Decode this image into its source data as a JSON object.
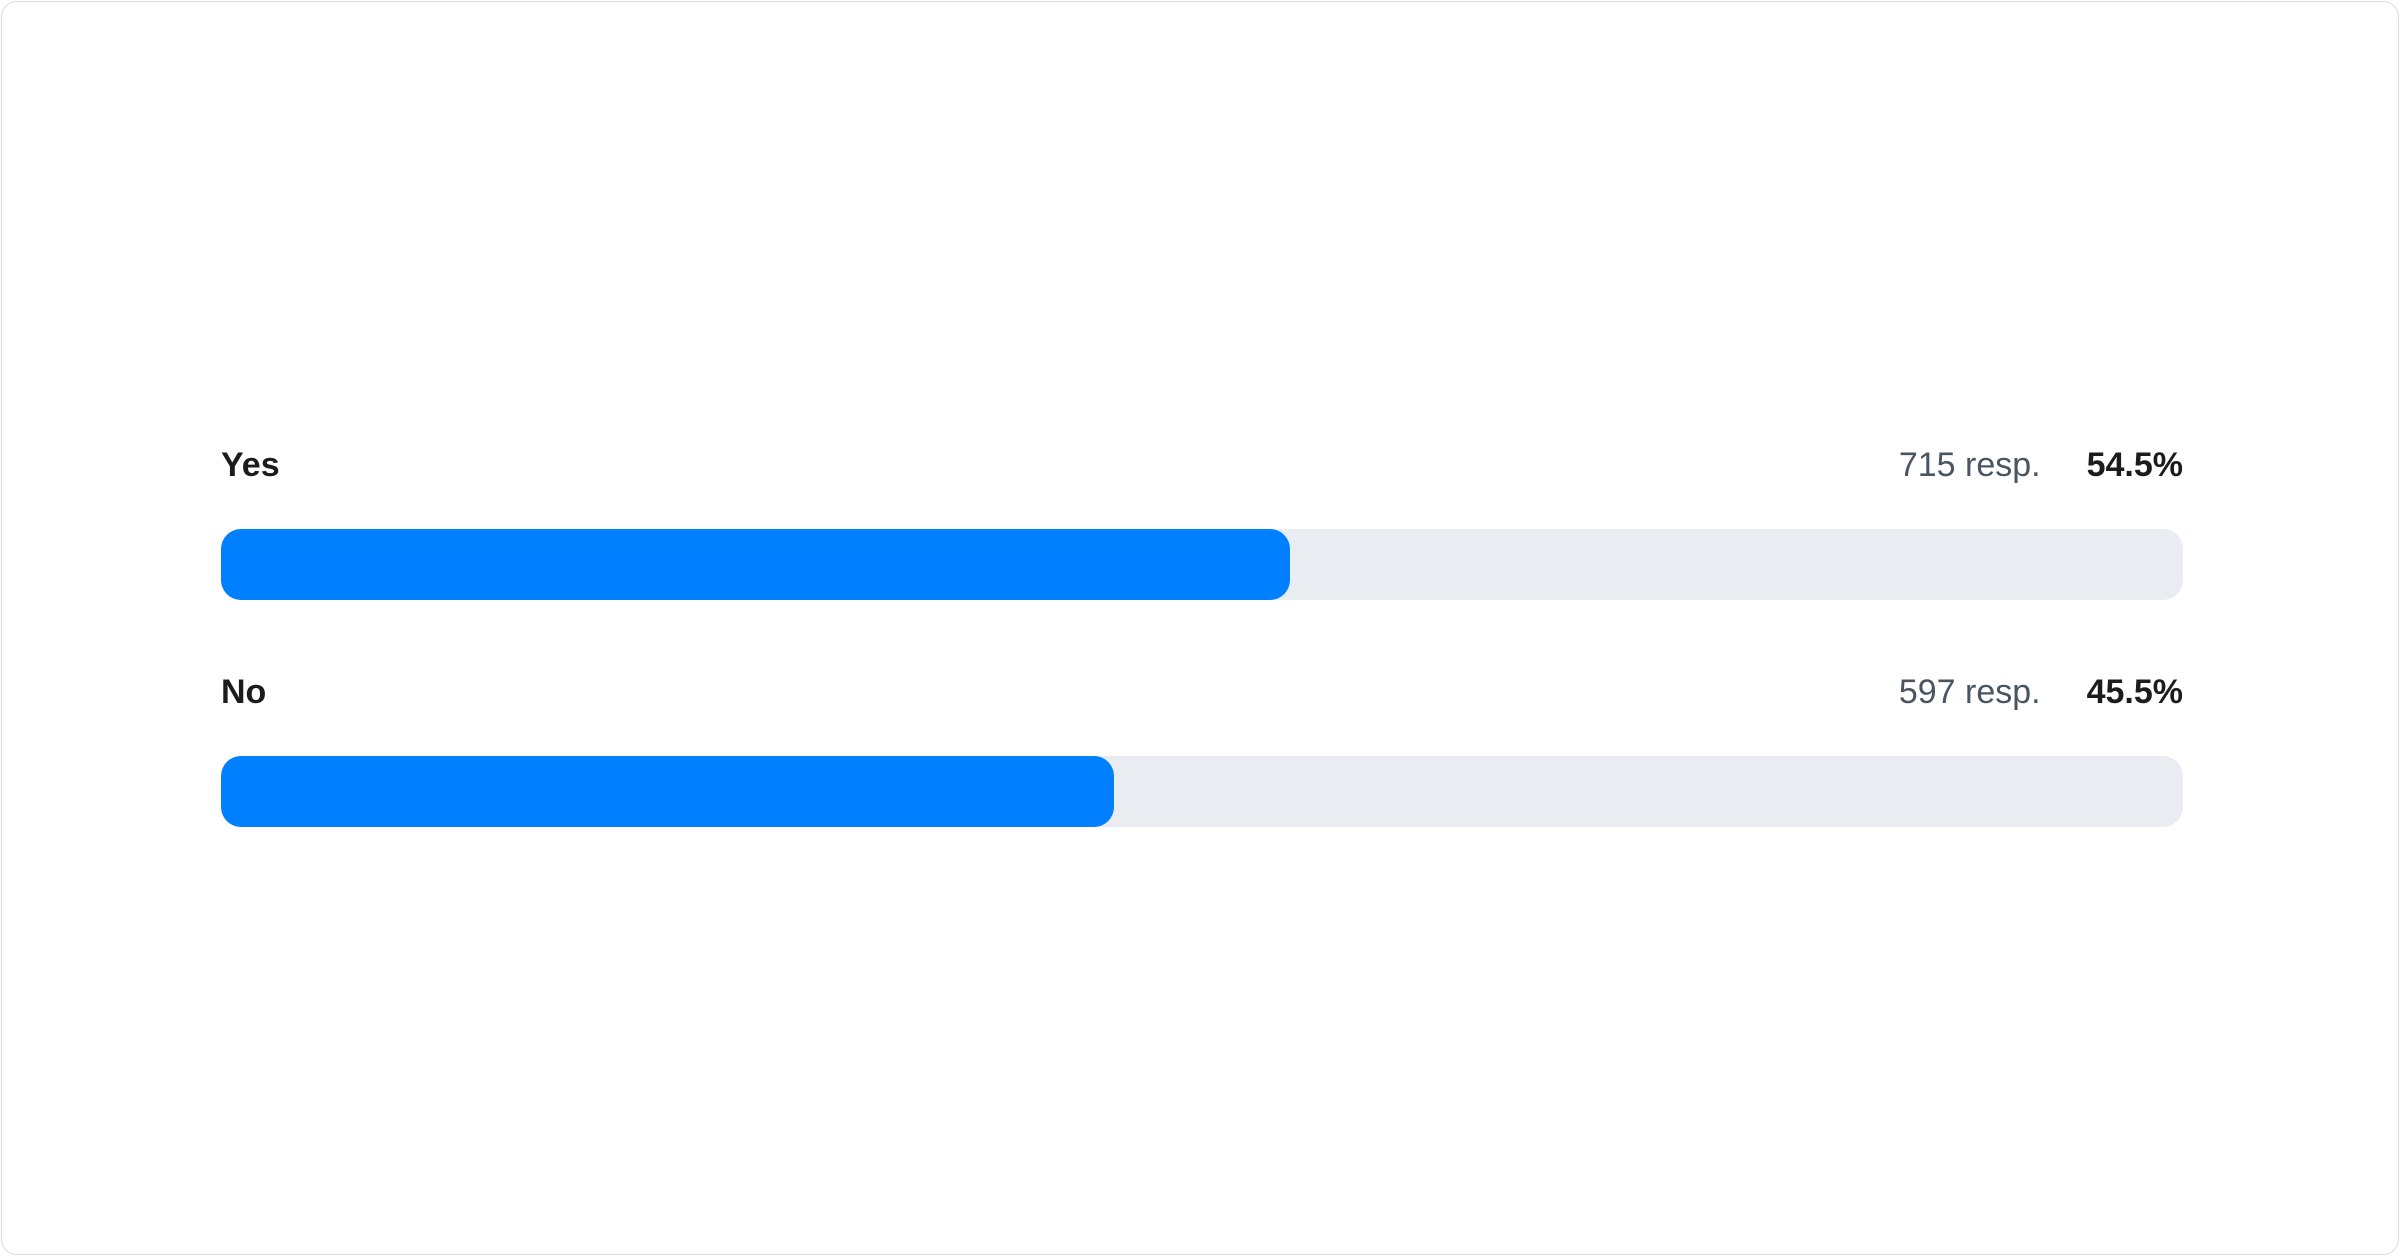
{
  "chart_data": {
    "type": "bar",
    "orientation": "horizontal",
    "categories": [
      "Yes",
      "No"
    ],
    "values": [
      54.5,
      45.5
    ],
    "responses": [
      "715 resp.",
      "597 resp."
    ],
    "percent_labels": [
      "54.5%",
      "45.5%"
    ],
    "xlim": [
      0,
      100
    ],
    "grid": false,
    "colors": {
      "fill": "#0080ff",
      "track": "#e9ecf1"
    }
  }
}
